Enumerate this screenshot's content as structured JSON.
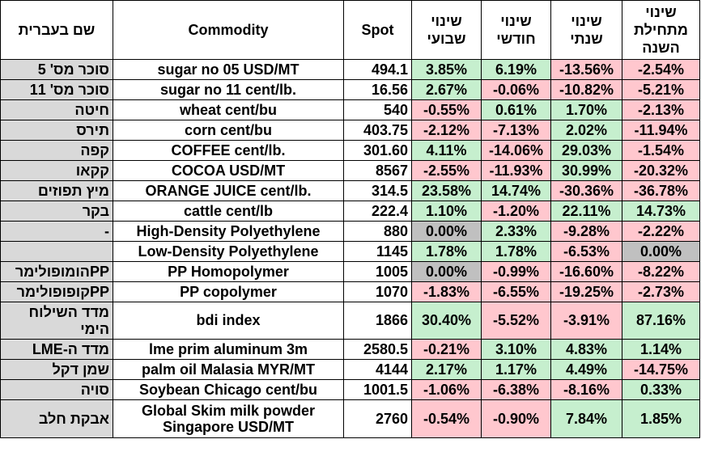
{
  "headers": {
    "hebrew_name": "שם בעברית",
    "commodity": "Commodity",
    "spot": "Spot",
    "weekly": "שינוי שבועי",
    "monthly": "שינוי חודשי",
    "yearly": "שינוי שנתי",
    "ytd": "שינוי מתחילת השנה"
  },
  "colors": {
    "positive": "#c6efce",
    "negative": "#ffc7ce",
    "zero": "#c0c0c0",
    "name_column": "#d9d9d9"
  },
  "rows": [
    {
      "heb": "סוכר מס' 5",
      "commodity": "sugar no 05 USD/MT",
      "spot": "494.1",
      "w": "3.85%",
      "m": "6.19%",
      "y": "-13.56%",
      "ytd": "-2.54%"
    },
    {
      "heb": "סוכר מס' 11",
      "commodity": "sugar no 11 cent/lb.",
      "spot": "16.56",
      "w": "2.67%",
      "m": "-0.06%",
      "y": "-10.82%",
      "ytd": "-5.21%"
    },
    {
      "heb": "חיטה",
      "commodity": "wheat cent/bu",
      "spot": "540",
      "w": "-0.55%",
      "m": "0.61%",
      "y": "1.70%",
      "ytd": "-2.13%"
    },
    {
      "heb": "תירס",
      "commodity": "corn cent/bu",
      "spot": "403.75",
      "w": "-2.12%",
      "m": "-7.13%",
      "y": "2.02%",
      "ytd": "-11.94%"
    },
    {
      "heb": "קפה",
      "commodity": "COFFEE cent/lb.",
      "spot": "301.60",
      "w": "4.11%",
      "m": "-14.06%",
      "y": "29.03%",
      "ytd": "-1.54%"
    },
    {
      "heb": "קקאו",
      "commodity": "COCOA USD/MT",
      "spot": "8567",
      "w": "-2.55%",
      "m": "-11.93%",
      "y": "30.99%",
      "ytd": "-20.32%"
    },
    {
      "heb": "מיץ תפוזים",
      "commodity": "ORANGE JUICE cent/lb.",
      "spot": "314.5",
      "w": "23.58%",
      "m": "14.74%",
      "y": "-30.36%",
      "ytd": "-36.78%"
    },
    {
      "heb": "בקר",
      "commodity": "cattle cent/lb",
      "spot": "222.4",
      "w": "1.10%",
      "m": "-1.20%",
      "y": "22.11%",
      "ytd": "14.73%"
    },
    {
      "heb": "-",
      "commodity": "High-Density Polyethylene",
      "spot": "880",
      "w": "0.00%",
      "m": "2.33%",
      "y": "-9.28%",
      "ytd": "-2.22%"
    },
    {
      "heb": "",
      "commodity": "Low-Density Polyethylene",
      "spot": "1145",
      "w": "1.78%",
      "m": "1.78%",
      "y": "-6.53%",
      "ytd": "0.00%"
    },
    {
      "heb": "PPהומופולימר",
      "commodity": "PP Homopolymer",
      "spot": "1005",
      "w": "0.00%",
      "m": "-0.99%",
      "y": "-16.60%",
      "ytd": "-8.22%"
    },
    {
      "heb": "PPקופופולימר",
      "commodity": "PP copolymer",
      "spot": "1070",
      "w": "-1.83%",
      "m": "-6.55%",
      "y": "-19.25%",
      "ytd": "-2.73%"
    },
    {
      "heb": "מדד השילוח הימי",
      "commodity": "bdi index",
      "spot": "1866",
      "w": "30.40%",
      "m": "-5.52%",
      "y": "-3.91%",
      "ytd": "87.16%"
    },
    {
      "heb": "מדד ה-LME",
      "commodity": "lme prim aluminum 3m",
      "spot": "2580.5",
      "w": "-0.21%",
      "m": "3.10%",
      "y": "4.83%",
      "ytd": "1.14%"
    },
    {
      "heb": "שמן דקל",
      "commodity": "palm oil Malasia MYR/MT",
      "spot": "4144",
      "w": "2.17%",
      "m": "1.17%",
      "y": "4.49%",
      "ytd": "-14.75%"
    },
    {
      "heb": "סויה",
      "commodity": "Soybean Chicago cent/bu",
      "spot": "1001.5",
      "w": "-1.06%",
      "m": "-6.38%",
      "y": "-8.16%",
      "ytd": "0.33%"
    },
    {
      "heb": "אבקת חלב",
      "commodity": "Global Skim milk powder Singapore USD/MT",
      "spot": "2760",
      "w": "-0.54%",
      "m": "-0.90%",
      "y": "7.84%",
      "ytd": "1.85%"
    }
  ]
}
